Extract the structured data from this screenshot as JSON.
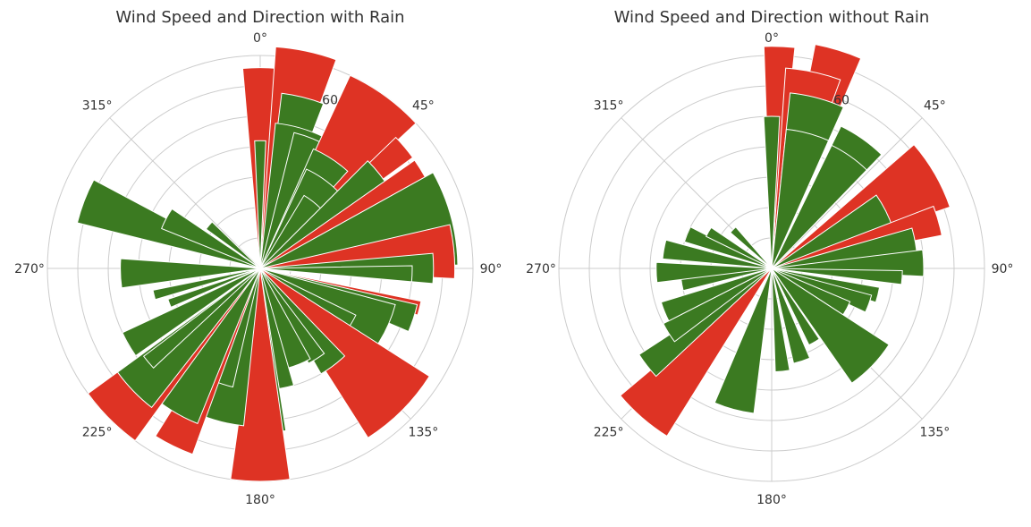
{
  "colors": {
    "green": "#3b7a21",
    "red": "#de3324",
    "grid": "#cccccc",
    "bar_edge": "#ffffff",
    "text": "#333333"
  },
  "chart_data": [
    {
      "type": "polar-bar",
      "title": "Wind Speed and Direction with Rain",
      "theta_tick_labels": [
        "0°",
        "45°",
        "90°",
        "135°",
        "180°",
        "225°",
        "270°",
        "315°"
      ],
      "theta_tick_angles": [
        0,
        45,
        90,
        135,
        180,
        225,
        270,
        315
      ],
      "r_tick_values": [
        10,
        20,
        30,
        40,
        50,
        60,
        70
      ],
      "r_tick_labels": [
        "",
        "",
        "",
        "",
        "",
        "60",
        ""
      ],
      "rlim": [
        0,
        70
      ],
      "grid": true,
      "bars": [
        {
          "angle": 0,
          "value": 66,
          "width": 10,
          "color": "red"
        },
        {
          "angle": 0,
          "value": 42,
          "width": 5,
          "color": "green"
        },
        {
          "angle": 12,
          "value": 73,
          "width": 16,
          "color": "red"
        },
        {
          "angle": 14,
          "value": 58,
          "width": 14,
          "color": "green"
        },
        {
          "angle": 16,
          "value": 48,
          "width": 20,
          "color": "green"
        },
        {
          "angle": 22,
          "value": 46,
          "width": 16,
          "color": "green"
        },
        {
          "angle": 36,
          "value": 70,
          "width": 22,
          "color": "red"
        },
        {
          "angle": 33,
          "value": 43,
          "width": 18,
          "color": "green"
        },
        {
          "angle": 35,
          "value": 36,
          "width": 20,
          "color": "green"
        },
        {
          "angle": 38,
          "value": 28,
          "width": 14,
          "color": "green"
        },
        {
          "angle": 50,
          "value": 62,
          "width": 8,
          "color": "red"
        },
        {
          "angle": 52,
          "value": 50,
          "width": 14,
          "color": "green"
        },
        {
          "angle": 58,
          "value": 62,
          "width": 6,
          "color": "red"
        },
        {
          "angle": 75,
          "value": 65,
          "width": 28,
          "color": "green"
        },
        {
          "angle": 85,
          "value": 64,
          "width": 16,
          "color": "red"
        },
        {
          "angle": 90,
          "value": 57,
          "width": 10,
          "color": "green"
        },
        {
          "angle": 92,
          "value": 50,
          "width": 6,
          "color": "green"
        },
        {
          "angle": 104,
          "value": 54,
          "width": 5,
          "color": "red"
        },
        {
          "angle": 108,
          "value": 53,
          "width": 10,
          "color": "green"
        },
        {
          "angle": 115,
          "value": 46,
          "width": 20,
          "color": "green"
        },
        {
          "angle": 121,
          "value": 35,
          "width": 10,
          "color": "green"
        },
        {
          "angle": 135,
          "value": 66,
          "width": 25,
          "color": "red"
        },
        {
          "angle": 143,
          "value": 40,
          "width": 14,
          "color": "green"
        },
        {
          "angle": 148,
          "value": 35,
          "width": 10,
          "color": "green"
        },
        {
          "angle": 158,
          "value": 34,
          "width": 14,
          "color": "green"
        },
        {
          "angle": 170,
          "value": 40,
          "width": 12,
          "color": "green"
        },
        {
          "angle": 176,
          "value": 54,
          "width": 10,
          "color": "green"
        },
        {
          "angle": 180,
          "value": 70,
          "width": 16,
          "color": "red"
        },
        {
          "angle": 194,
          "value": 52,
          "width": 16,
          "color": "green"
        },
        {
          "angle": 200,
          "value": 40,
          "width": 14,
          "color": "green"
        },
        {
          "angle": 206,
          "value": 65,
          "width": 12,
          "color": "red"
        },
        {
          "angle": 212,
          "value": 55,
          "width": 20,
          "color": "green"
        },
        {
          "angle": 225,
          "value": 70,
          "width": 18,
          "color": "red"
        },
        {
          "angle": 226,
          "value": 58,
          "width": 16,
          "color": "green"
        },
        {
          "angle": 230,
          "value": 48,
          "width": 6,
          "color": "green"
        },
        {
          "angle": 240,
          "value": 50,
          "width": 10,
          "color": "green"
        },
        {
          "angle": 249,
          "value": 32,
          "width": 5,
          "color": "green"
        },
        {
          "angle": 256,
          "value": 36,
          "width": 5,
          "color": "green"
        },
        {
          "angle": 268,
          "value": 46,
          "width": 12,
          "color": "green"
        },
        {
          "angle": 291,
          "value": 62,
          "width": 14,
          "color": "green"
        },
        {
          "angle": 298,
          "value": 35,
          "width": 12,
          "color": "green"
        },
        {
          "angle": 310,
          "value": 22,
          "width": 8,
          "color": "green"
        }
      ]
    },
    {
      "type": "polar-bar",
      "title": "Wind Speed and Direction without Rain",
      "theta_tick_labels": [
        "0°",
        "45°",
        "90°",
        "135°",
        "180°",
        "225°",
        "270°",
        "315°"
      ],
      "theta_tick_angles": [
        0,
        45,
        90,
        135,
        180,
        225,
        270,
        315
      ],
      "r_tick_values": [
        10,
        20,
        30,
        40,
        50,
        60,
        70
      ],
      "r_tick_labels": [
        "",
        "",
        "",
        "",
        "",
        "60",
        ""
      ],
      "rlim": [
        0,
        70
      ],
      "grid": true,
      "bars": [
        {
          "angle": 2,
          "value": 73,
          "width": 8,
          "color": "red"
        },
        {
          "angle": 0,
          "value": 50,
          "width": 6,
          "color": "green"
        },
        {
          "angle": 17,
          "value": 75,
          "width": 12,
          "color": "red"
        },
        {
          "angle": 12,
          "value": 66,
          "width": 16,
          "color": "red"
        },
        {
          "angle": 15,
          "value": 58,
          "width": 18,
          "color": "green"
        },
        {
          "angle": 15,
          "value": 46,
          "width": 18,
          "color": "green"
        },
        {
          "angle": 35,
          "value": 52,
          "width": 18,
          "color": "green"
        },
        {
          "angle": 35,
          "value": 45,
          "width": 18,
          "color": "green"
        },
        {
          "angle": 60,
          "value": 62,
          "width": 22,
          "color": "red"
        },
        {
          "angle": 64,
          "value": 42,
          "width": 18,
          "color": "green"
        },
        {
          "angle": 74,
          "value": 57,
          "width": 10,
          "color": "red"
        },
        {
          "angle": 80,
          "value": 48,
          "width": 12,
          "color": "green"
        },
        {
          "angle": 88,
          "value": 50,
          "width": 10,
          "color": "green"
        },
        {
          "angle": 94,
          "value": 43,
          "width": 6,
          "color": "green"
        },
        {
          "angle": 104,
          "value": 36,
          "width": 8,
          "color": "green"
        },
        {
          "angle": 110,
          "value": 34,
          "width": 10,
          "color": "green"
        },
        {
          "angle": 118,
          "value": 28,
          "width": 10,
          "color": "green"
        },
        {
          "angle": 134,
          "value": 46,
          "width": 22,
          "color": "green"
        },
        {
          "angle": 150,
          "value": 28,
          "width": 8,
          "color": "green"
        },
        {
          "angle": 162,
          "value": 32,
          "width": 10,
          "color": "green"
        },
        {
          "angle": 174,
          "value": 34,
          "width": 8,
          "color": "green"
        },
        {
          "angle": 195,
          "value": 48,
          "width": 16,
          "color": "green"
        },
        {
          "angle": 221,
          "value": 65,
          "width": 18,
          "color": "red"
        },
        {
          "angle": 232,
          "value": 52,
          "width": 10,
          "color": "green"
        },
        {
          "angle": 238,
          "value": 40,
          "width": 10,
          "color": "green"
        },
        {
          "angle": 248,
          "value": 38,
          "width": 10,
          "color": "green"
        },
        {
          "angle": 260,
          "value": 30,
          "width": 8,
          "color": "green"
        },
        {
          "angle": 268,
          "value": 38,
          "width": 10,
          "color": "green"
        },
        {
          "angle": 280,
          "value": 36,
          "width": 10,
          "color": "green"
        },
        {
          "angle": 292,
          "value": 30,
          "width": 10,
          "color": "green"
        },
        {
          "angle": 300,
          "value": 24,
          "width": 8,
          "color": "green"
        },
        {
          "angle": 315,
          "value": 18,
          "width": 8,
          "color": "green"
        }
      ]
    }
  ]
}
